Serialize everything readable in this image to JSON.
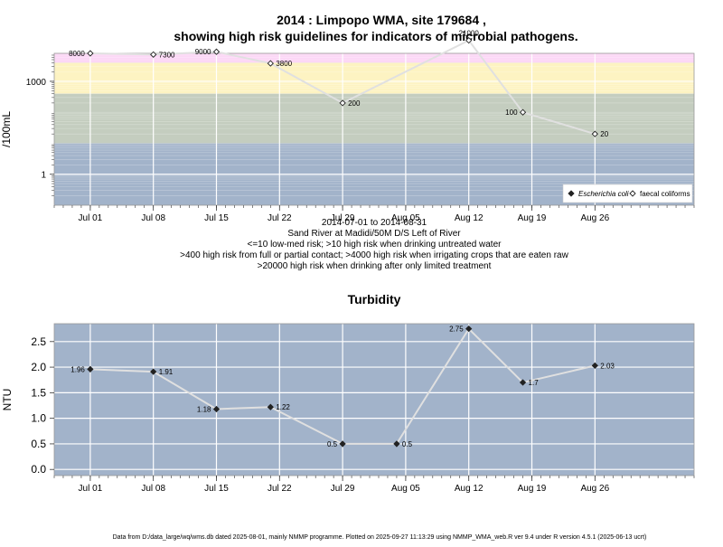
{
  "colors": {
    "band_red": "#f7a9b8",
    "band_pink": "#fcd7f6",
    "band_yellow": "#fdf3c2",
    "band_green": "#c4cdbf",
    "band_blue": "#a2b3ca",
    "grid": "#ffffff",
    "line": "#e0e0e0"
  },
  "footer": "Data from D:/data_large/wq/wms.db dated 2025-08-01, mainly NMMP programme. Plotted on 2025-09-27 11:13:29 using NMMP_WMA_web.R ver 9.4 under R version 4.5.1 (2025-06-13 ucrt)",
  "chart_data": [
    {
      "type": "line",
      "title_line1": "2014 : Limpopo WMA, site 179684 ,",
      "title_line2": "showing high risk guidelines for indicators of microbial pathogens.",
      "xlabel": "",
      "ylabel": "/100mL",
      "y_scale": "log10",
      "ylim": [
        0.1,
        8000
      ],
      "x_range": [
        "2014-06-27",
        "2014-09-06"
      ],
      "x_ticks": [
        {
          "date": "2014-07-01",
          "label": "Jul 01"
        },
        {
          "date": "2014-07-08",
          "label": "Jul 08"
        },
        {
          "date": "2014-07-15",
          "label": "Jul 15"
        },
        {
          "date": "2014-07-22",
          "label": "Jul 22"
        },
        {
          "date": "2014-07-29",
          "label": "Jul 29"
        },
        {
          "date": "2014-08-05",
          "label": "Aug 05"
        },
        {
          "date": "2014-08-12",
          "label": "Aug 12"
        },
        {
          "date": "2014-08-19",
          "label": "Aug 19"
        },
        {
          "date": "2014-08-26",
          "label": "Aug 26"
        }
      ],
      "y_ticks": [
        {
          "value": 1,
          "label": "1"
        },
        {
          "value": 1000,
          "label": "1000"
        }
      ],
      "risk_bands": [
        {
          "from": 0.1,
          "to": 10,
          "color_key": "band_blue"
        },
        {
          "from": 10,
          "to": 400,
          "color_key": "band_green"
        },
        {
          "from": 400,
          "to": 4000,
          "color_key": "band_yellow"
        },
        {
          "from": 4000,
          "to": 20000,
          "color_key": "band_pink"
        },
        {
          "from": 20000,
          "to": 8000,
          "color_key": "band_red"
        }
      ],
      "captions": [
        "2014-07-01 to 2014-08-31",
        "Sand River at Madidi/50M D/S Left of River",
        "<=10 low-med risk; >10 high risk when drinking untreated water",
        ">400 high risk from full or partial contact; >4000 high risk when irrigating crops that are eaten raw",
        ">20000 high risk when drinking after only limited treatment"
      ],
      "legend": {
        "position": "bottom-right",
        "entries": [
          {
            "label": "Escherichia coli",
            "marker": "filled-diamond"
          },
          {
            "label": "faecal coliforms",
            "marker": "open-diamond"
          }
        ]
      },
      "series": [
        {
          "marker": "open-diamond",
          "points": [
            {
              "x": "2014-07-01",
              "y": 8000,
              "label": "8000",
              "label_side": "left"
            },
            {
              "x": "2014-07-08",
              "y": 7300,
              "label": "7300",
              "label_side": "right"
            },
            {
              "x": "2014-07-15",
              "y": 9000,
              "label": "9000",
              "label_side": "left"
            },
            {
              "x": "2014-07-21",
              "y": 3800,
              "label": "3800",
              "label_side": "right"
            },
            {
              "x": "2014-07-29",
              "y": 200,
              "label": "200",
              "label_side": "right"
            },
            {
              "x": "2014-08-12",
              "y": 21000,
              "label": "21000",
              "label_side": "above"
            },
            {
              "x": "2014-08-18",
              "y": 100,
              "label": "100",
              "label_side": "left"
            },
            {
              "x": "2014-08-26",
              "y": 20,
              "label": "20",
              "label_side": "right"
            }
          ]
        }
      ]
    },
    {
      "type": "line",
      "title": "Turbidity",
      "xlabel": "",
      "ylabel": "NTU",
      "ylim": [
        -0.12,
        2.85
      ],
      "x_range": [
        "2014-06-27",
        "2014-09-06"
      ],
      "x_ticks": [
        {
          "date": "2014-07-01",
          "label": "Jul 01"
        },
        {
          "date": "2014-07-08",
          "label": "Jul 08"
        },
        {
          "date": "2014-07-15",
          "label": "Jul 15"
        },
        {
          "date": "2014-07-22",
          "label": "Jul 22"
        },
        {
          "date": "2014-07-29",
          "label": "Jul 29"
        },
        {
          "date": "2014-08-05",
          "label": "Aug 05"
        },
        {
          "date": "2014-08-12",
          "label": "Aug 12"
        },
        {
          "date": "2014-08-19",
          "label": "Aug 19"
        },
        {
          "date": "2014-08-26",
          "label": "Aug 26"
        }
      ],
      "y_ticks": [
        {
          "value": 0,
          "label": "0.0"
        },
        {
          "value": 0.5,
          "label": "0.5"
        },
        {
          "value": 1,
          "label": "1.0"
        },
        {
          "value": 1.5,
          "label": "1.5"
        },
        {
          "value": 2,
          "label": "2.0"
        },
        {
          "value": 2.5,
          "label": "2.5"
        }
      ],
      "series": [
        {
          "marker": "filled-diamond",
          "points": [
            {
              "x": "2014-07-01",
              "y": 1.96,
              "label": "1.96",
              "label_side": "left"
            },
            {
              "x": "2014-07-08",
              "y": 1.91,
              "label": "1.91",
              "label_side": "right"
            },
            {
              "x": "2014-07-15",
              "y": 1.18,
              "label": "1.18",
              "label_side": "left"
            },
            {
              "x": "2014-07-21",
              "y": 1.22,
              "label": "1.22",
              "label_side": "right"
            },
            {
              "x": "2014-07-29",
              "y": 0.5,
              "label": "0.5",
              "label_side": "left"
            },
            {
              "x": "2014-08-04",
              "y": 0.5,
              "label": "0.5",
              "label_side": "right"
            },
            {
              "x": "2014-08-12",
              "y": 2.75,
              "label": "2.75",
              "label_side": "left"
            },
            {
              "x": "2014-08-18",
              "y": 1.7,
              "label": "1.7",
              "label_side": "right"
            },
            {
              "x": "2014-08-26",
              "y": 2.03,
              "label": "2.03",
              "label_side": "right"
            }
          ]
        }
      ]
    }
  ]
}
